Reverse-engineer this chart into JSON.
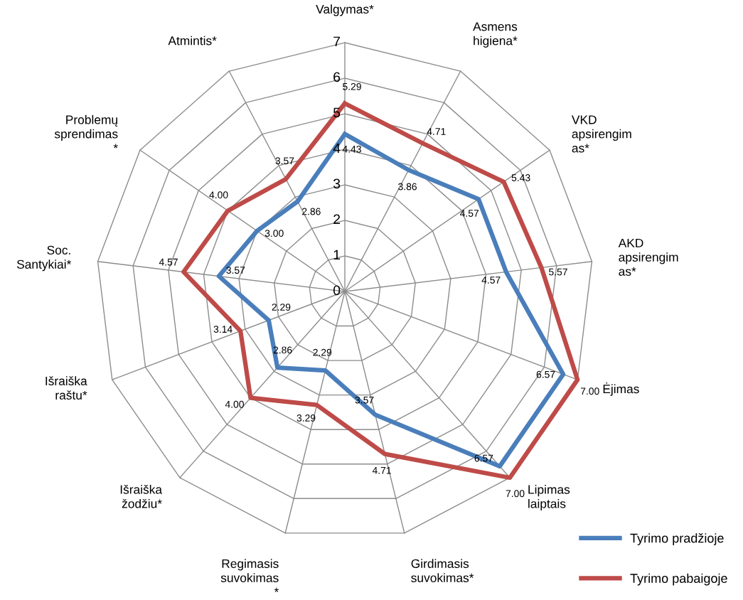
{
  "chart_data": {
    "type": "radar",
    "categories": [
      "Valgymas*",
      "Asmens\nhigiena*",
      "VKD\napsirengim\nas*",
      "AKD\napsirengim\nas*",
      "Ėjimas",
      "Lipimas\nlaiptais",
      "Girdimasis\nsuvokimas*",
      "Regimasis\nsuvokimas\n*",
      "Išraiška\nžodžiu*",
      "Išraiška\nraštu*",
      "Soc.\nSantykiai*",
      "Problemų\nsprendimas\n*",
      "Atmintis*"
    ],
    "series": [
      {
        "name": "Tyrimo pradžioje",
        "color": "#4a7ebb",
        "values": [
          4.43,
          3.86,
          4.57,
          4.57,
          6.57,
          6.57,
          3.57,
          2.29,
          2.86,
          2.29,
          3.57,
          3.0,
          2.86
        ],
        "value_labels": [
          "4.43",
          "3.86",
          "4.57",
          "4.57",
          "6.57",
          "6.57",
          "3.57",
          "2.29",
          "2.86",
          "2.29",
          "3.57",
          "3.00",
          "2.86"
        ]
      },
      {
        "name": "Tyrimo pabaigoje",
        "color": "#be4b48",
        "values": [
          5.29,
          4.71,
          5.43,
          5.57,
          7.0,
          7.0,
          4.71,
          3.29,
          4.0,
          3.14,
          4.57,
          4.0,
          3.57
        ],
        "value_labels": [
          "5.29",
          "4.71",
          "5.43",
          "5.57",
          "7.00",
          "7.00",
          "4.71",
          "3.29",
          "4.00",
          "3.14",
          "4.57",
          "4.00",
          "3.57"
        ]
      }
    ],
    "ylim": [
      0,
      7
    ],
    "yticks": [
      0,
      1,
      2,
      3,
      4,
      5,
      6,
      7
    ],
    "grid": true,
    "legend": "bottom right",
    "marker": "none",
    "line_style": "solid"
  }
}
